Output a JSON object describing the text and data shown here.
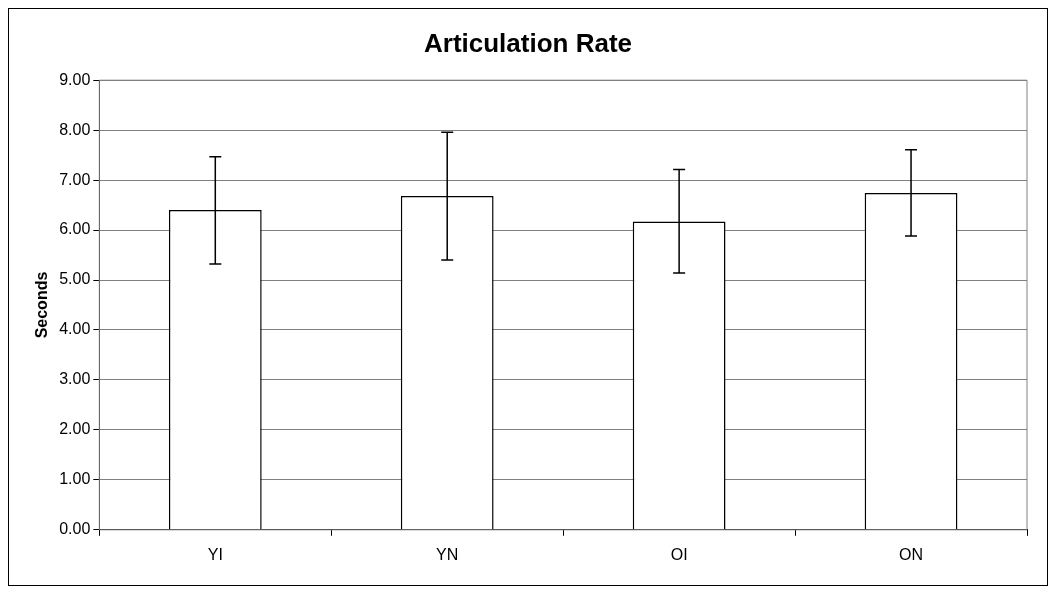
{
  "chart_data": {
    "type": "bar",
    "title": "Articulation Rate",
    "ylabel": "Seconds",
    "categories": [
      "YI",
      "YN",
      "OI",
      "ON"
    ],
    "values": [
      6.4,
      6.68,
      6.17,
      6.74
    ],
    "errors": [
      [
        5.32,
        7.47
      ],
      [
        5.4,
        7.96
      ],
      [
        5.14,
        7.21
      ],
      [
        5.88,
        7.61
      ]
    ],
    "color": "#ffffff",
    "ylim": [
      0,
      9
    ],
    "yticks": [
      {
        "value": 0,
        "label": "0.00"
      },
      {
        "value": 1,
        "label": "1.00"
      },
      {
        "value": 2,
        "label": "2.00"
      },
      {
        "value": 3,
        "label": "3.00"
      },
      {
        "value": 4,
        "label": "4.00"
      },
      {
        "value": 5,
        "label": "5.00"
      },
      {
        "value": 6,
        "label": "6.00"
      },
      {
        "value": 7,
        "label": "7.00"
      },
      {
        "value": 8,
        "label": "8.00"
      },
      {
        "value": 9,
        "label": "9.00"
      }
    ],
    "grid": "y",
    "legend": false
  }
}
